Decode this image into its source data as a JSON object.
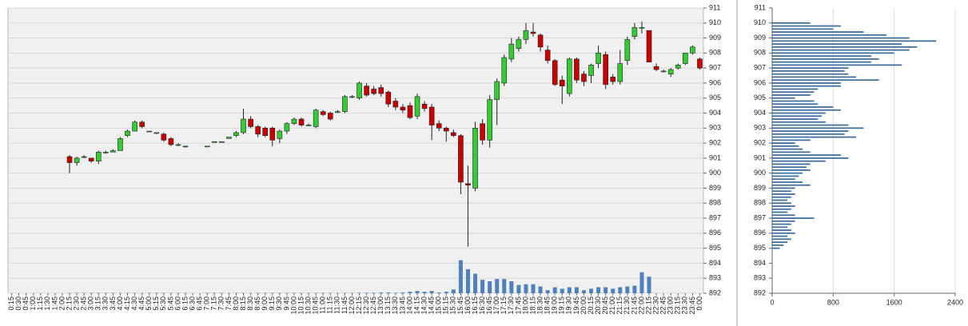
{
  "chart_data": [
    {
      "type": "candlestick",
      "categories": [
        "0:15",
        "0:30",
        "0:45",
        "1:00",
        "1:15",
        "1:30",
        "1:45",
        "2:00",
        "2:15",
        "2:30",
        "2:45",
        "3:00",
        "3:15",
        "3:30",
        "3:45",
        "4:00",
        "4:15",
        "4:30",
        "4:45",
        "5:00",
        "5:15",
        "5:30",
        "5:45",
        "6:00",
        "6:15",
        "6:30",
        "6:45",
        "7:00",
        "7:15",
        "7:30",
        "7:45",
        "8:00",
        "8:15",
        "8:30",
        "8:45",
        "9:00",
        "9:15",
        "9:30",
        "9:45",
        "10:00",
        "10:15",
        "10:30",
        "10:45",
        "11:00",
        "11:15",
        "11:30",
        "11:45",
        "12:00",
        "12:15",
        "12:30",
        "12:45",
        "13:00",
        "13:15",
        "13:30",
        "13:45",
        "14:00",
        "14:15",
        "14:30",
        "14:45",
        "15:00",
        "15:15",
        "15:30",
        "15:45",
        "16:00",
        "16:15",
        "16:30",
        "16:45",
        "17:00",
        "17:15",
        "17:30",
        "17:45",
        "18:00",
        "18:15",
        "18:30",
        "18:45",
        "19:00",
        "19:15",
        "19:30",
        "19:45",
        "20:00",
        "20:15",
        "20:30",
        "20:45",
        "21:00",
        "21:15",
        "21:30",
        "21:45",
        "22:00",
        "22:15",
        "22:30",
        "22:45",
        "23:00",
        "23:15",
        "23:30",
        "23:45",
        "0:00"
      ],
      "open": [
        null,
        null,
        null,
        null,
        null,
        null,
        null,
        null,
        901.1,
        900.7,
        901.1,
        901.0,
        900.8,
        901.4,
        901.4,
        901.5,
        902.5,
        902.8,
        903.4,
        902.8,
        902.7,
        902.6,
        902.3,
        901.9,
        901.8,
        null,
        null,
        901.8,
        902.1,
        902.1,
        902.3,
        902.5,
        902.7,
        903.6,
        903.1,
        903.0,
        903.0,
        902.3,
        902.8,
        903.3,
        903.6,
        903.2,
        903.1,
        904.1,
        904.0,
        904.1,
        904.1,
        905.1,
        905.0,
        905.8,
        905.6,
        905.7,
        905.4,
        904.8,
        904.4,
        904.5,
        903.8,
        904.6,
        904.4,
        903.3,
        903.0,
        902.7,
        902.5,
        899.3,
        899.0,
        903.3,
        902.2,
        904.9,
        906.0,
        907.6,
        908.3,
        908.9,
        909.4,
        909.2,
        908.2,
        907.5,
        906.2,
        905.3,
        907.6,
        906.6,
        906.5,
        907.3,
        907.9,
        906.4,
        906.1,
        907.5,
        909.1,
        909.7,
        909.5,
        907.1,
        906.8,
        906.6,
        907.0,
        907.3,
        908.0,
        907.6
      ],
      "high": [
        null,
        null,
        null,
        null,
        null,
        null,
        null,
        null,
        901.2,
        901.1,
        901.2,
        901.0,
        901.5,
        901.5,
        901.6,
        902.4,
        902.9,
        903.5,
        903.5,
        902.8,
        902.7,
        902.7,
        902.4,
        902.0,
        901.8,
        null,
        null,
        901.8,
        902.1,
        902.1,
        902.4,
        902.8,
        904.3,
        903.8,
        903.2,
        903.1,
        903.1,
        902.9,
        903.4,
        903.7,
        903.7,
        903.3,
        904.3,
        904.2,
        904.1,
        904.2,
        905.2,
        905.2,
        906.1,
        906.0,
        905.8,
        905.9,
        905.5,
        905.0,
        904.6,
        904.7,
        905.3,
        904.8,
        904.6,
        903.5,
        903.1,
        902.9,
        902.6,
        900.5,
        903.4,
        903.6,
        905.2,
        906.3,
        907.9,
        909.0,
        909.1,
        910.0,
        910.0,
        909.3,
        908.5,
        907.6,
        906.5,
        907.7,
        907.7,
        906.8,
        907.3,
        908.5,
        908.1,
        906.6,
        908.2,
        909.1,
        910.0,
        910.1,
        909.5,
        907.3,
        906.9,
        907.0,
        907.3,
        908.0,
        908.5,
        907.7
      ],
      "low": [
        null,
        null,
        null,
        null,
        null,
        null,
        null,
        null,
        900.0,
        900.5,
        901.0,
        900.7,
        900.6,
        901.3,
        901.4,
        901.5,
        902.4,
        902.8,
        903.0,
        902.8,
        902.6,
        902.1,
        901.8,
        901.8,
        901.7,
        null,
        null,
        901.8,
        902.1,
        902.1,
        902.3,
        902.4,
        902.6,
        903.0,
        902.4,
        902.4,
        901.8,
        902.0,
        902.6,
        903.2,
        903.1,
        903.2,
        903.0,
        903.8,
        903.5,
        904.0,
        904.0,
        905.0,
        904.9,
        905.1,
        905.2,
        905.1,
        904.4,
        904.2,
        904.0,
        903.6,
        903.6,
        904.1,
        902.2,
        902.8,
        902.1,
        902.4,
        898.6,
        895.1,
        898.8,
        901.9,
        901.7,
        903.2,
        905.8,
        907.4,
        908.1,
        908.6,
        909.1,
        908.1,
        907.3,
        905.8,
        904.6,
        905.1,
        906.0,
        905.8,
        906.0,
        907.0,
        905.6,
        905.9,
        905.9,
        907.2,
        908.9,
        909.3,
        907.4,
        906.8,
        906.7,
        906.4,
        906.9,
        907.2,
        907.9,
        906.9
      ],
      "close": [
        null,
        null,
        null,
        null,
        null,
        null,
        null,
        null,
        900.7,
        901.0,
        901.1,
        900.8,
        901.4,
        901.4,
        901.5,
        902.3,
        902.8,
        903.4,
        903.1,
        902.8,
        902.7,
        902.2,
        901.9,
        901.9,
        901.8,
        null,
        null,
        901.8,
        902.1,
        902.1,
        902.4,
        902.7,
        903.6,
        903.1,
        902.6,
        902.5,
        902.2,
        902.8,
        903.3,
        903.6,
        903.2,
        903.2,
        904.2,
        903.9,
        903.6,
        904.1,
        905.1,
        905.1,
        906.0,
        905.2,
        905.3,
        905.3,
        904.6,
        904.4,
        904.2,
        903.7,
        905.1,
        904.3,
        903.2,
        903.0,
        902.8,
        902.5,
        899.4,
        899.2,
        903.0,
        902.2,
        904.9,
        906.1,
        907.7,
        908.6,
        908.9,
        909.5,
        909.3,
        908.4,
        907.5,
        905.9,
        905.8,
        907.6,
        906.2,
        906.1,
        907.2,
        908.0,
        905.9,
        906.1,
        907.3,
        908.9,
        909.7,
        909.7,
        907.4,
        906.9,
        906.8,
        906.9,
        907.2,
        908.0,
        908.4,
        907.0
      ],
      "volume": [
        null,
        null,
        null,
        null,
        null,
        null,
        null,
        null,
        0.02,
        0.02,
        0.02,
        0.02,
        0.02,
        0.02,
        0.02,
        0.02,
        0.02,
        0.02,
        0.02,
        0.02,
        0.02,
        0.02,
        0.02,
        0.02,
        0.02,
        null,
        null,
        0.02,
        0.02,
        0.02,
        0.02,
        0.02,
        0.02,
        0.02,
        0.02,
        0.02,
        0.02,
        0.02,
        0.02,
        0.02,
        0.02,
        0.02,
        0.02,
        0.02,
        0.02,
        0.02,
        0.02,
        0.02,
        0.03,
        0.03,
        0.03,
        0.05,
        0.05,
        0.03,
        0.05,
        0.1,
        0.15,
        0.1,
        0.15,
        0.05,
        0.1,
        0.25,
        2.2,
        1.6,
        1.3,
        0.9,
        0.8,
        0.95,
        0.95,
        0.8,
        0.55,
        0.6,
        0.6,
        0.45,
        0.2,
        0.4,
        0.3,
        0.4,
        0.4,
        0.2,
        0.3,
        0.4,
        0.4,
        0.3,
        0.4,
        0.45,
        0.5,
        1.4,
        1.1,
        0,
        0,
        0,
        0,
        0,
        0,
        0
      ],
      "up_color": "#33cc33",
      "down_color": "#cc0000",
      "volume_color": "#4f81bd",
      "background": "#f0f0f0",
      "ylim": [
        892,
        911
      ],
      "yticks": [
        892,
        893,
        894,
        895,
        896,
        897,
        898,
        899,
        900,
        901,
        902,
        903,
        904,
        905,
        906,
        907,
        908,
        909,
        910,
        911
      ],
      "grid": true
    },
    {
      "type": "bar",
      "orientation": "horizontal",
      "y": [
        895.0,
        895.2,
        895.4,
        895.6,
        895.8,
        896.0,
        896.2,
        896.4,
        896.6,
        896.8,
        897.0,
        897.2,
        897.4,
        897.6,
        897.8,
        898.0,
        898.2,
        898.4,
        898.6,
        898.8,
        899.0,
        899.2,
        899.4,
        899.6,
        899.8,
        900.0,
        900.2,
        900.4,
        900.6,
        900.8,
        901.0,
        901.2,
        901.4,
        901.6,
        901.8,
        902.0,
        902.2,
        902.4,
        902.6,
        902.8,
        903.0,
        903.2,
        903.4,
        903.6,
        903.8,
        904.0,
        904.2,
        904.4,
        904.6,
        904.8,
        905.0,
        905.2,
        905.4,
        905.6,
        905.8,
        906.0,
        906.2,
        906.4,
        906.6,
        906.8,
        907.0,
        907.2,
        907.4,
        907.6,
        907.8,
        908.0,
        908.2,
        908.4,
        908.6,
        908.8,
        909.0,
        909.2,
        909.4,
        909.6,
        909.8,
        910.0
      ],
      "values": [
        100,
        150,
        200,
        250,
        200,
        300,
        250,
        200,
        250,
        300,
        550,
        300,
        200,
        250,
        300,
        250,
        200,
        250,
        300,
        250,
        300,
        500,
        400,
        300,
        350,
        400,
        500,
        450,
        500,
        700,
        1000,
        900,
        500,
        400,
        350,
        300,
        500,
        1100,
        950,
        1000,
        1200,
        1000,
        700,
        600,
        650,
        700,
        900,
        800,
        600,
        550,
        300,
        500,
        550,
        600,
        900,
        900,
        1400,
        1100,
        1000,
        950,
        1000,
        1700,
        1300,
        1400,
        1300,
        1600,
        1800,
        1900,
        1700,
        2150,
        1800,
        1500,
        1200,
        800,
        900,
        500
      ],
      "color": "#3f6f9f",
      "xlim": [
        0,
        2400
      ],
      "xticks": [
        0,
        800,
        1600,
        2400
      ],
      "ylim": [
        892,
        911
      ],
      "yticks": [
        892,
        893,
        894,
        895,
        896,
        897,
        898,
        899,
        900,
        901,
        902,
        903,
        904,
        905,
        906,
        907,
        908,
        909,
        910,
        911
      ],
      "grid": true
    }
  ]
}
